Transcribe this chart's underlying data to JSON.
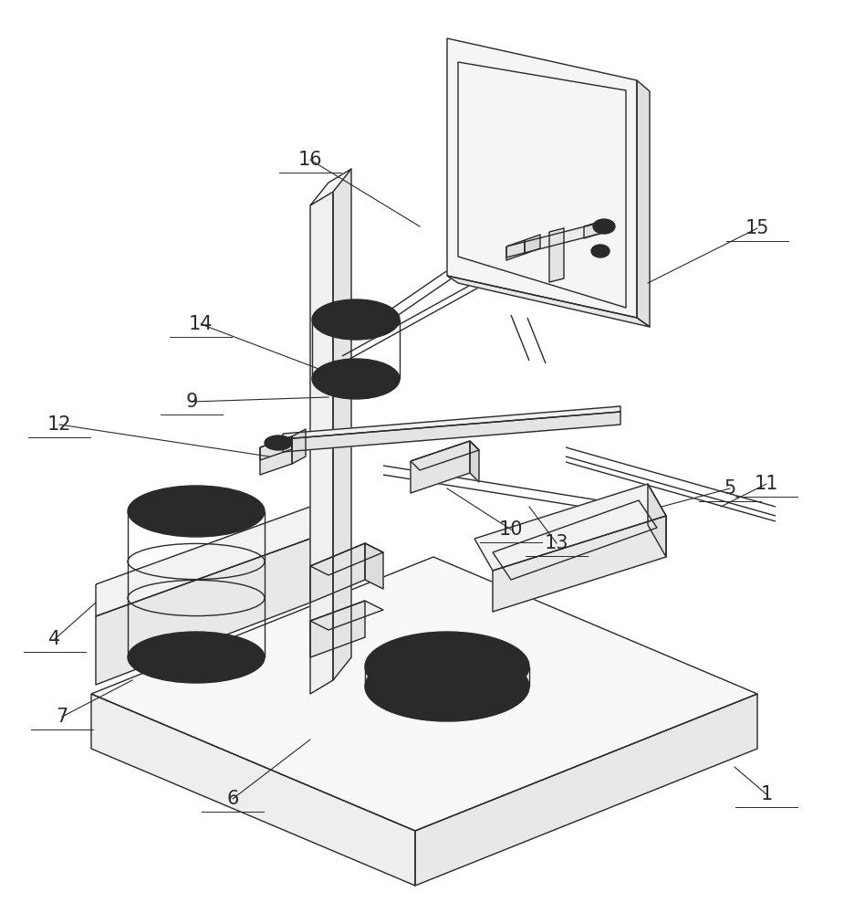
{
  "bg_color": "#ffffff",
  "lc": "#2a2a2a",
  "lw": 1.0,
  "fig_width": 9.25,
  "fig_height": 10.0
}
